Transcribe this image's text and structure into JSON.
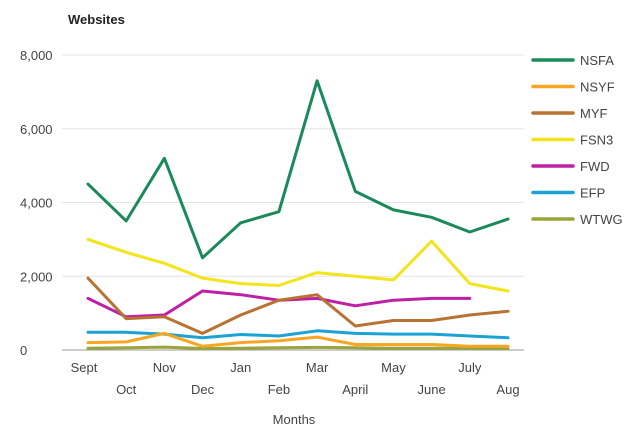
{
  "chart_data": {
    "type": "line",
    "title": "Websites",
    "xlabel": "Months",
    "ylabel": "",
    "ylim": [
      0,
      8000
    ],
    "yticks": [
      0,
      2000,
      4000,
      6000,
      8000
    ],
    "ytick_labels": [
      "0",
      "2,000",
      "4,000",
      "6,000",
      "8,000"
    ],
    "grid": true,
    "legend_position": "right",
    "categories": [
      "Sept",
      "Oct",
      "Nov",
      "Dec",
      "Jan",
      "Feb",
      "Mar",
      "April",
      "May",
      "June",
      "July",
      "Aug"
    ],
    "series": [
      {
        "name": "NSFA",
        "color": "#1a8a5a",
        "values": [
          4500,
          3500,
          5200,
          2500,
          3450,
          3750,
          7300,
          4300,
          3800,
          3600,
          3200,
          3550
        ]
      },
      {
        "name": "NSYF",
        "color": "#f6a623",
        "values": [
          200,
          220,
          450,
          100,
          200,
          250,
          350,
          150,
          150,
          150,
          100,
          100
        ]
      },
      {
        "name": "MYF",
        "color": "#b87333",
        "values": [
          1950,
          850,
          900,
          450,
          950,
          1350,
          1500,
          650,
          800,
          800,
          950,
          1050
        ]
      },
      {
        "name": "FSN3",
        "color": "#f2e51b",
        "values": [
          3000,
          2650,
          2350,
          1950,
          1800,
          1750,
          2100,
          2000,
          1900,
          2950,
          1800,
          1600
        ]
      },
      {
        "name": "FWD",
        "color": "#bf1fa6",
        "values": [
          1400,
          900,
          950,
          1600,
          1500,
          1350,
          1400,
          1200,
          1350,
          1400,
          1400,
          null
        ]
      },
      {
        "name": "EFP",
        "color": "#1aa3d4",
        "values": [
          480,
          480,
          430,
          330,
          420,
          380,
          520,
          450,
          430,
          430,
          380,
          330
        ]
      },
      {
        "name": "WTWG",
        "color": "#9aa538",
        "values": [
          50,
          60,
          80,
          40,
          50,
          60,
          70,
          60,
          50,
          50,
          50,
          40
        ]
      }
    ]
  }
}
